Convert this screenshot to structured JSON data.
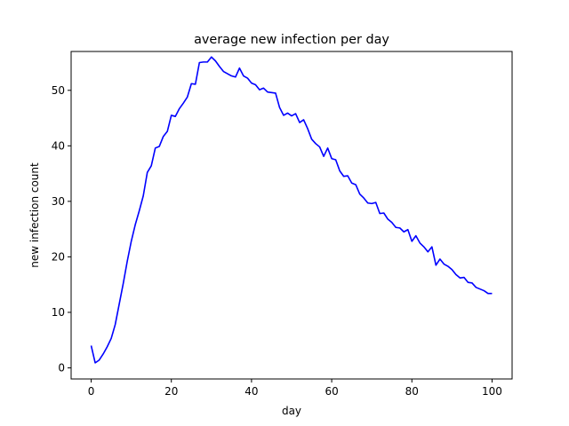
{
  "chart_data": {
    "type": "line",
    "title": "average new infection per day",
    "xlabel": "day",
    "ylabel": "new infection count",
    "xlim": [
      -5,
      105
    ],
    "ylim": [
      -2,
      57
    ],
    "xticks": [
      0,
      20,
      40,
      60,
      80,
      100
    ],
    "yticks": [
      0,
      10,
      20,
      30,
      40,
      50
    ],
    "grid": false,
    "series": [
      {
        "color": "#0000ff",
        "x": [
          0,
          1,
          2,
          3,
          4,
          5,
          6,
          7,
          8,
          9,
          10,
          11,
          12,
          13,
          14,
          15,
          16,
          17,
          18,
          19,
          20,
          21,
          22,
          23,
          24,
          25,
          26,
          27,
          28,
          29,
          30,
          31,
          32,
          33,
          34,
          35,
          36,
          37,
          38,
          39,
          40,
          41,
          42,
          43,
          44,
          45,
          46,
          47,
          48,
          49,
          50,
          51,
          52,
          53,
          54,
          55,
          56,
          57,
          58,
          59,
          60,
          61,
          62,
          63,
          64,
          65,
          66,
          67,
          68,
          69,
          70,
          71,
          72,
          73,
          74,
          75,
          76,
          77,
          78,
          79,
          80,
          81,
          82,
          83,
          84,
          85,
          86,
          87,
          88,
          89,
          90,
          91,
          92,
          93,
          94,
          95,
          96,
          97,
          98,
          99,
          100
        ],
        "y": [
          4.0,
          0.9,
          1.4,
          2.5,
          3.8,
          5.3,
          7.8,
          11.5,
          15.2,
          19.2,
          22.8,
          25.8,
          28.3,
          31.0,
          35.2,
          36.4,
          39.6,
          39.9,
          41.7,
          42.6,
          45.5,
          45.3,
          46.7,
          47.7,
          48.8,
          51.2,
          51.1,
          55.0,
          55.1,
          55.1,
          56.0,
          55.3,
          54.3,
          53.4,
          53.0,
          52.6,
          52.4,
          54.0,
          52.6,
          52.2,
          51.3,
          51.0,
          50.1,
          50.4,
          49.7,
          49.6,
          49.5,
          46.9,
          45.5,
          45.9,
          45.4,
          45.8,
          44.2,
          44.7,
          43.1,
          41.2,
          40.4,
          39.8,
          38.1,
          39.6,
          37.7,
          37.5,
          35.5,
          34.5,
          34.6,
          33.3,
          33.0,
          31.3,
          30.6,
          29.7,
          29.6,
          29.8,
          27.8,
          27.9,
          26.8,
          26.2,
          25.3,
          25.2,
          24.5,
          24.9,
          22.8,
          23.8,
          22.5,
          21.8,
          20.9,
          21.8,
          18.5,
          19.6,
          18.7,
          18.3,
          17.7,
          16.8,
          16.2,
          16.3,
          15.4,
          15.3,
          14.5,
          14.2,
          13.9,
          13.4,
          13.4
        ]
      }
    ]
  }
}
